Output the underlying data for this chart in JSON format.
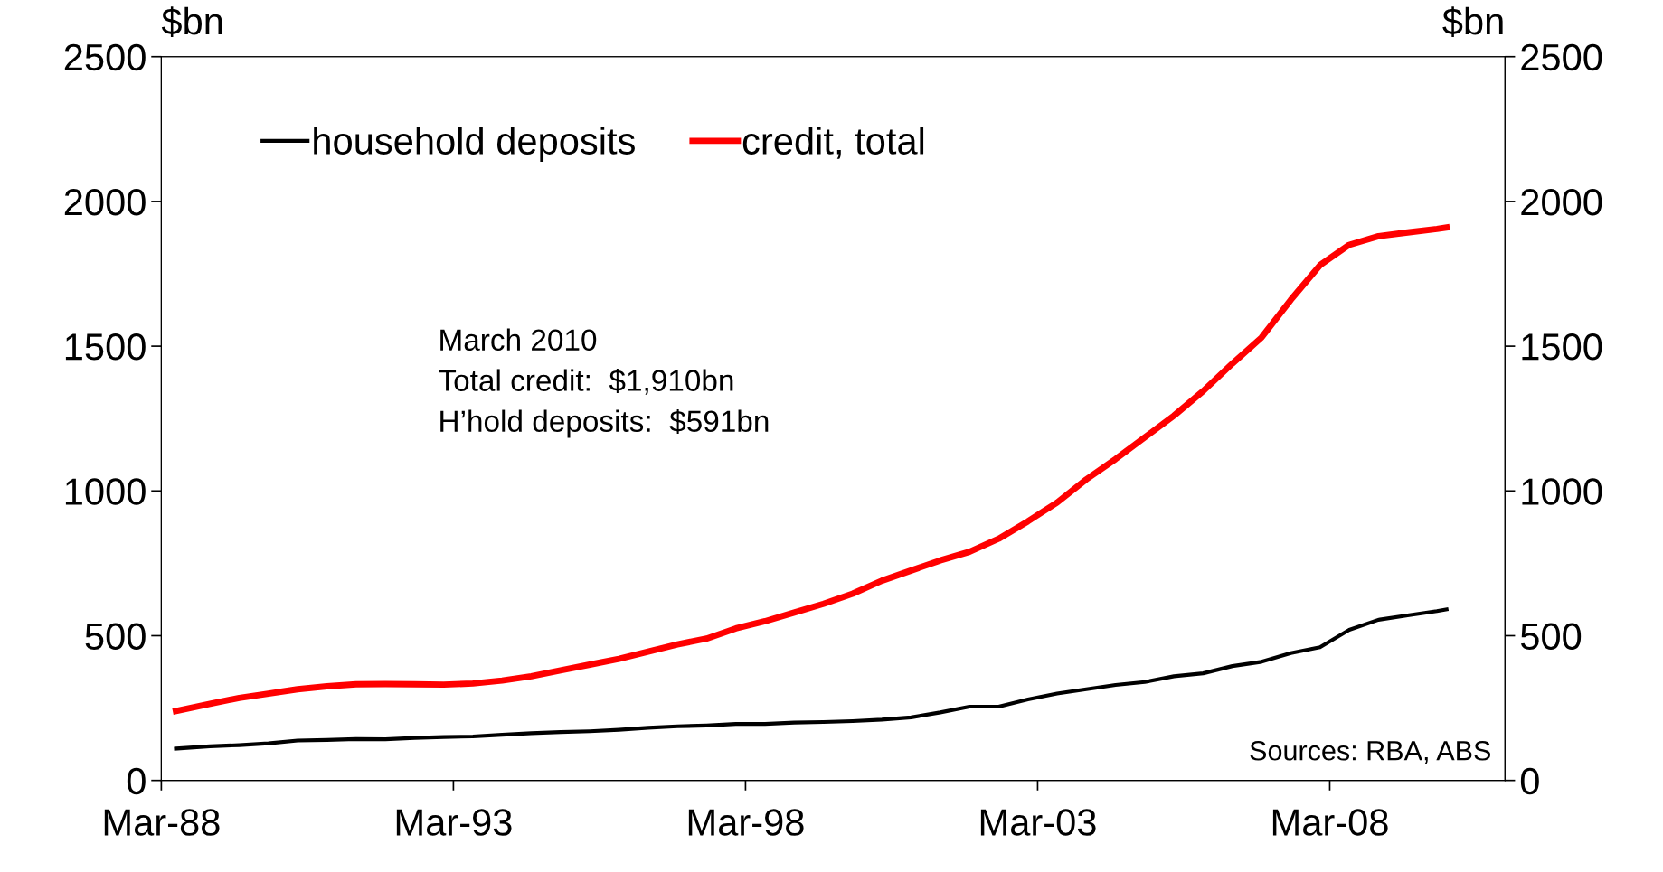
{
  "chart_data": {
    "type": "line",
    "ylabel": "$bn",
    "y2label": "$bn",
    "annotations": [
      "March 2010",
      "Total credit:  $1,910bn",
      "H’hold deposits:  $591bn",
      "Sources: RBA, ABS"
    ],
    "x": [
      "1988-06",
      "1989-01",
      "1989-07",
      "1990-01",
      "1990-07",
      "1991-01",
      "1991-07",
      "1992-01",
      "1992-07",
      "1993-01",
      "1993-07",
      "1994-01",
      "1994-07",
      "1995-01",
      "1995-07",
      "1996-01",
      "1996-07",
      "1997-01",
      "1997-07",
      "1998-01",
      "1998-07",
      "1999-01",
      "1999-07",
      "2000-01",
      "2000-07",
      "2001-01",
      "2001-07",
      "2002-01",
      "2002-07",
      "2003-01",
      "2003-07",
      "2004-01",
      "2004-07",
      "2005-01",
      "2005-07",
      "2006-01",
      "2006-07",
      "2007-01",
      "2007-07",
      "2008-01",
      "2008-07",
      "2009-01",
      "2009-07",
      "2010-01",
      "2010-03"
    ],
    "series": [
      {
        "name": "household deposits",
        "color": "#000000",
        "values": [
          110,
          118,
          122,
          128,
          138,
          140,
          143,
          142,
          147,
          150,
          152,
          158,
          163,
          167,
          170,
          175,
          182,
          187,
          190,
          195,
          195,
          200,
          202,
          205,
          210,
          218,
          235,
          255,
          255,
          280,
          300,
          315,
          330,
          340,
          360,
          370,
          395,
          410,
          440,
          460,
          520,
          555,
          570,
          585,
          591
        ]
      },
      {
        "name": "credit, total",
        "color": "#ff0000",
        "values": [
          240,
          265,
          285,
          300,
          315,
          325,
          332,
          333,
          332,
          331,
          335,
          345,
          360,
          380,
          400,
          420,
          445,
          470,
          490,
          525,
          550,
          580,
          610,
          645,
          690,
          725,
          760,
          790,
          835,
          895,
          960,
          1040,
          1110,
          1185,
          1260,
          1345,
          1440,
          1530,
          1660,
          1780,
          1850,
          1880,
          1893,
          1905,
          1910
        ]
      }
    ],
    "xlim": [
      "1988-03",
      "2011-03"
    ],
    "xticks": [
      {
        "value": "1988-03",
        "label": "Mar-88"
      },
      {
        "value": "1993-03",
        "label": "Mar-93"
      },
      {
        "value": "1998-03",
        "label": "Mar-98"
      },
      {
        "value": "2003-03",
        "label": "Mar-03"
      },
      {
        "value": "2008-03",
        "label": "Mar-08"
      }
    ],
    "ylim": [
      0,
      2500
    ],
    "yticks": [
      0,
      500,
      1000,
      1500,
      2000,
      2500
    ],
    "y2lim": [
      0,
      2500
    ],
    "y2ticks": [
      0,
      500,
      1000,
      1500,
      2000,
      2500
    ],
    "legend": "top left",
    "marker": "none",
    "line_style": "solid"
  }
}
